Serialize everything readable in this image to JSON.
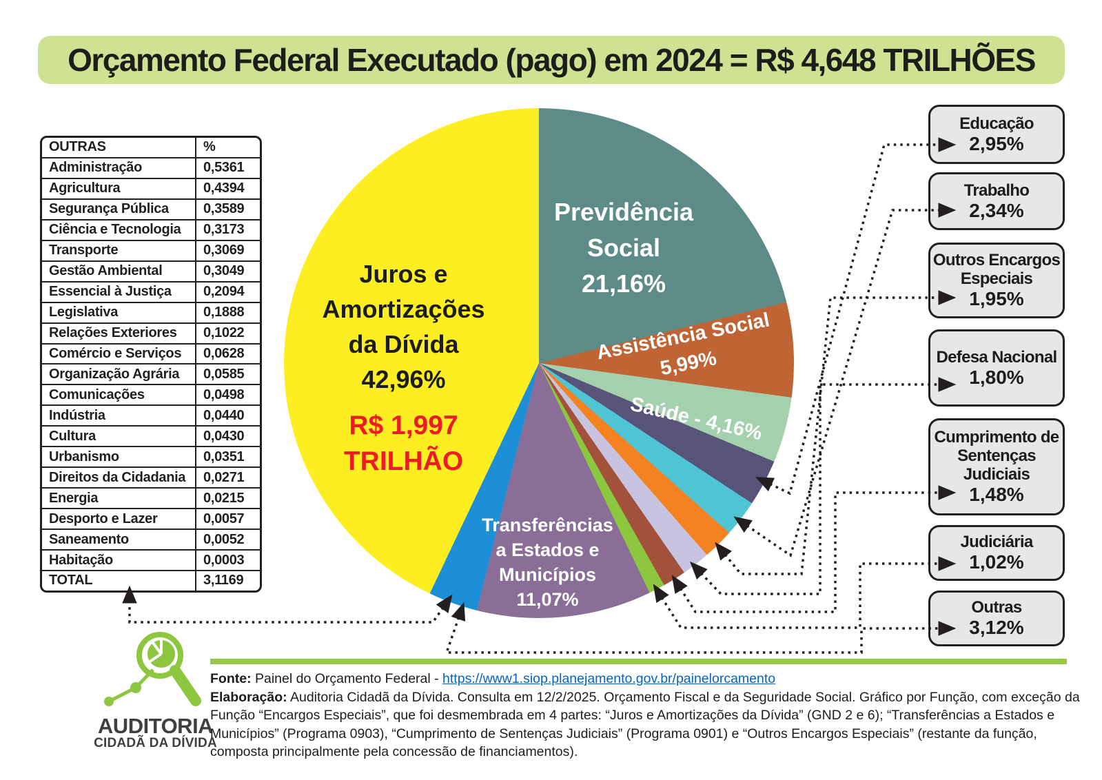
{
  "title": "Orçamento Federal Executado (pago) em 2024 = R$ 4,648 TRILHÕES",
  "table": {
    "header": {
      "label": "OUTRAS",
      "value": "%"
    },
    "rows": [
      {
        "label": "Administração",
        "value": "0,5361"
      },
      {
        "label": "Agricultura",
        "value": "0,4394"
      },
      {
        "label": "Segurança Pública",
        "value": "0,3589"
      },
      {
        "label": "Ciência e Tecnologia",
        "value": "0,3173"
      },
      {
        "label": "Transporte",
        "value": "0,3069"
      },
      {
        "label": "Gestão Ambiental",
        "value": "0,3049"
      },
      {
        "label": "Essencial à Justiça",
        "value": "0,2094"
      },
      {
        "label": "Legislativa",
        "value": "0,1888"
      },
      {
        "label": "Relações Exteriores",
        "value": "0,1022"
      },
      {
        "label": "Comércio e Serviços",
        "value": "0,0628"
      },
      {
        "label": "Organização Agrária",
        "value": "0,0585"
      },
      {
        "label": "Comunicações",
        "value": "0,0498"
      },
      {
        "label": "Indústria",
        "value": "0,0440"
      },
      {
        "label": "Cultura",
        "value": "0,0430"
      },
      {
        "label": "Urbanismo",
        "value": "0,0351"
      },
      {
        "label": "Direitos da Cidadania",
        "value": "0,0271"
      },
      {
        "label": "Energia",
        "value": "0,0215"
      },
      {
        "label": "Desporto e Lazer",
        "value": "0,0057"
      },
      {
        "label": "Saneamento",
        "value": "0,0052"
      },
      {
        "label": "Habitação",
        "value": "0,0003"
      }
    ],
    "total": {
      "label": "TOTAL",
      "value": "3,1169"
    }
  },
  "chart_data": {
    "type": "pie",
    "title": "Orçamento Federal Executado (pago) em 2024 = R$ 4,648 TRILHÕES",
    "start_angle_deg": 0,
    "direction": "clockwise",
    "slices": [
      {
        "label": "Previdência Social",
        "value": 21.16,
        "display": "21,16%",
        "color": "#5d8b88"
      },
      {
        "label": "Assistência Social",
        "value": 5.99,
        "display": "5,99%",
        "color": "#bf6434"
      },
      {
        "label": "Saúde",
        "value": 4.16,
        "display": "4,16%",
        "color": "#a5d0ad"
      },
      {
        "label": "Educação",
        "value": 2.95,
        "display": "2,95%",
        "color": "#575379"
      },
      {
        "label": "Trabalho",
        "value": 2.34,
        "display": "2,34%",
        "color": "#4fc4d4"
      },
      {
        "label": "Outros Encargos Especiais",
        "value": 1.95,
        "display": "1,95%",
        "color": "#f58220"
      },
      {
        "label": "Defesa Nacional",
        "value": 1.8,
        "display": "1,80%",
        "color": "#c7c3e1"
      },
      {
        "label": "Cumprimento de Sentenças Judiciais",
        "value": 1.48,
        "display": "1,48%",
        "color": "#a2523a"
      },
      {
        "label": "Judiciária",
        "value": 1.02,
        "display": "1,02%",
        "color": "#8dc63f"
      },
      {
        "label": "Transferências a Estados e Municípios",
        "value": 11.07,
        "display": "11,07%",
        "color": "#8a6e98"
      },
      {
        "label": "Outras",
        "value": 3.12,
        "display": "3,12%",
        "color": "#1c8fd6"
      },
      {
        "label": "Juros e Amortizações da Dívida",
        "value": 42.96,
        "display": "42,96%",
        "color": "#fdee21"
      }
    ],
    "annotation": {
      "juros_amount": "R$ 1,997 TRILHÃO"
    }
  },
  "pie_labels": {
    "juros": [
      "Juros e",
      "Amortizações",
      "da Dívida",
      "42,96%"
    ],
    "juros_amount": [
      "R$ 1,997",
      "TRILHÃO"
    ],
    "previdencia": [
      "Previdência",
      "Social",
      "21,16%"
    ],
    "assistencia": [
      "Assistência Social",
      "5,99%"
    ],
    "saude": "Saúde - 4,16%",
    "transferencias": [
      "Transferências",
      "a Estados e",
      "Municípios",
      "11,07%"
    ]
  },
  "callouts": [
    {
      "label": "Educação",
      "value": "2,95%"
    },
    {
      "label": "Trabalho",
      "value": "2,34%"
    },
    {
      "label": "Outros Encargos Especiais",
      "value": "1,95%"
    },
    {
      "label": "Defesa Nacional",
      "value": "1,80%"
    },
    {
      "label": "Cumprimento de Sentenças Judiciais",
      "value": "1,48%"
    },
    {
      "label": "Judiciária",
      "value": "1,02%"
    },
    {
      "label": "Outras",
      "value": "3,12%"
    }
  ],
  "logo": {
    "line1": "AUDITORIA",
    "line2": "CIDADÃ DA DÍVIDA"
  },
  "footer": {
    "fonte_label": "Fonte:",
    "fonte_text": " Painel do Orçamento Federal - ",
    "fonte_link": "https://www1.siop.planejamento.gov.br/painelorcamento",
    "elaboracao_label": "Elaboração:",
    "elaboracao_text": " Auditoria Cidadã da Dívida. Consulta em 12/2/2025. Orçamento Fiscal e da Seguridade Social. Gráfico por Função, com exceção da Função “Encargos Especiais”, que foi desmembrada em 4 partes: “Juros e Amortizações da Dívida” (GND 2 e 6); “Transferências a Estados e Municípios” (Programa 0903), “Cumprimento de Sentenças Judiciais” (Programa 0901) e “Outros Encargos Especiais” (restante da função, composta principalmente pela concessão de financiamentos)."
  }
}
